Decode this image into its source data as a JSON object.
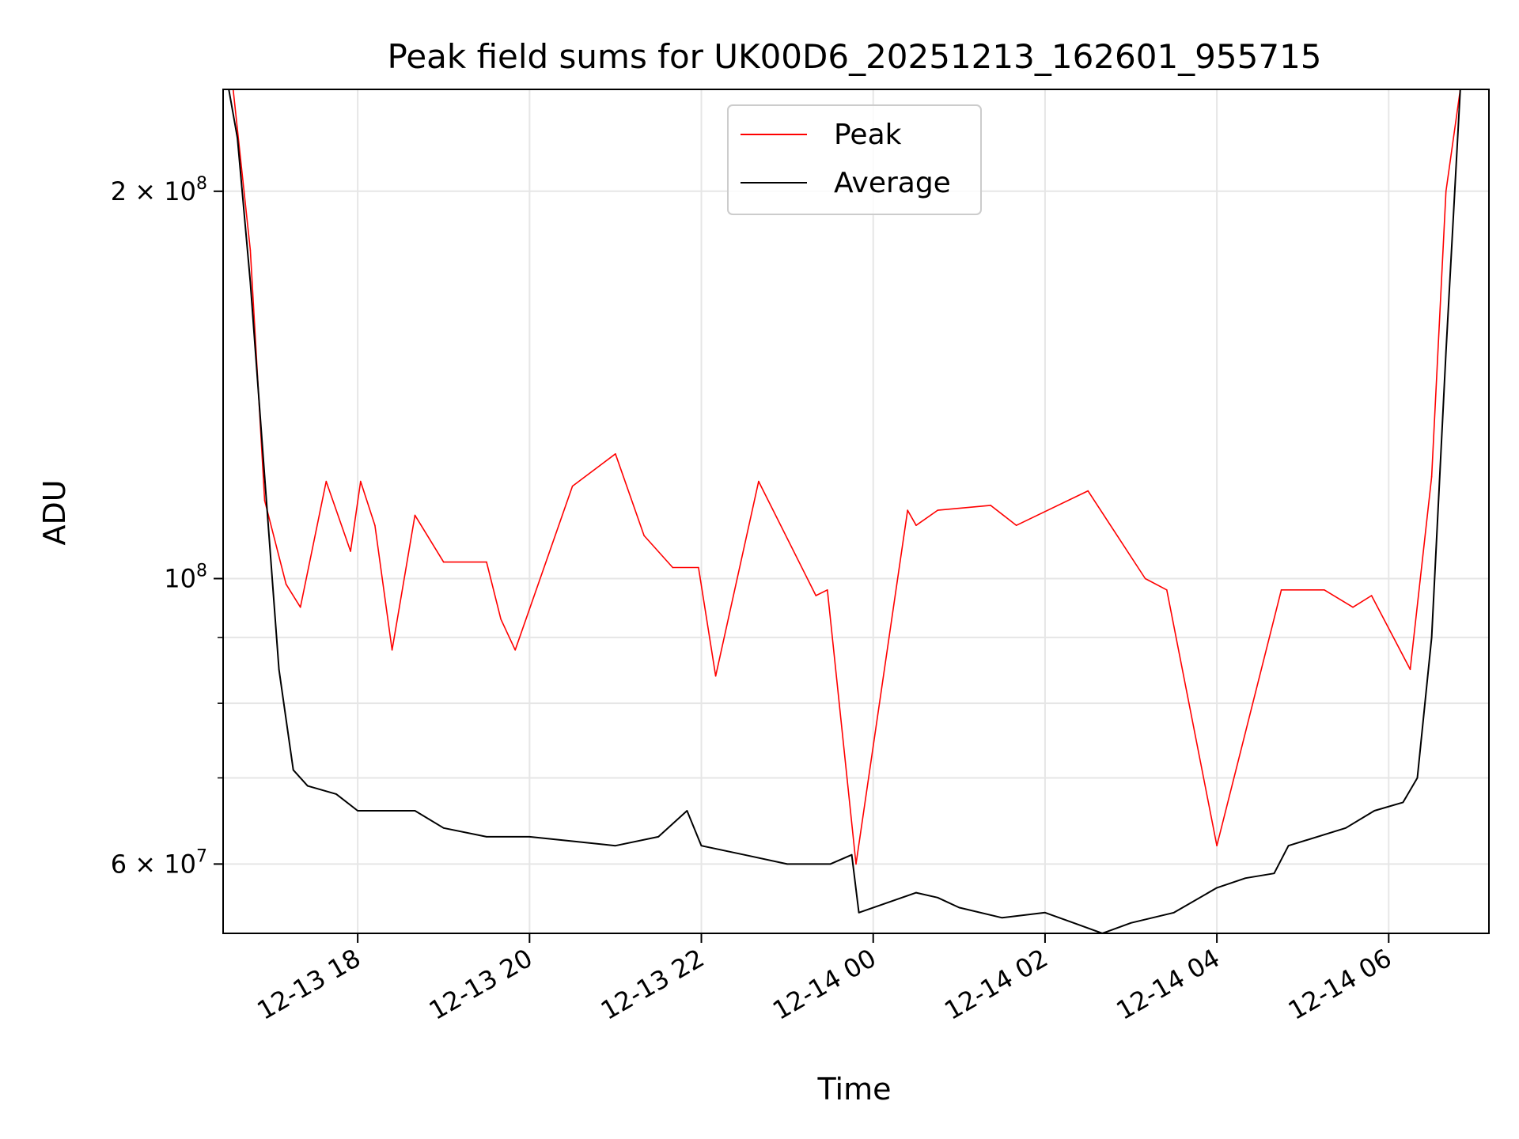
{
  "chart_data": {
    "type": "line",
    "title": "Peak field sums for UK00D6_20251213_162601_955715",
    "xlabel": "Time",
    "ylabel": "ADU",
    "yscale": "log",
    "xlim": [
      "2025-12-13 16:26",
      "2025-12-14 07:10"
    ],
    "ylim": [
      53000000,
      240000000
    ],
    "grid": true,
    "legend_position": "top-center",
    "x_ticks": [
      "12-13 18",
      "12-13 20",
      "12-13 22",
      "12-14 00",
      "12-14 02",
      "12-14 04",
      "12-14 06"
    ],
    "y_tick_labels": [
      {
        "value": 60000000,
        "label": "6 × 10^7",
        "mantissa": "6",
        "exponent": "7"
      },
      {
        "value": 100000000,
        "label": "10^8",
        "mantissa": "",
        "exponent": "8"
      },
      {
        "value": 200000000,
        "label": "2 × 10^8",
        "mantissa": "2",
        "exponent": "8"
      }
    ],
    "minor_y_ticks": [
      70000000,
      80000000,
      90000000
    ],
    "series": [
      {
        "name": "Peak",
        "color": "#ff0000",
        "x": [
          "2025-12-13 16:33",
          "2025-12-13 16:45",
          "2025-12-13 16:55",
          "2025-12-13 17:10",
          "2025-12-13 17:20",
          "2025-12-13 17:38",
          "2025-12-13 17:55",
          "2025-12-13 18:02",
          "2025-12-13 18:12",
          "2025-12-13 18:24",
          "2025-12-13 18:40",
          "2025-12-13 19:00",
          "2025-12-13 19:30",
          "2025-12-13 19:40",
          "2025-12-13 19:50",
          "2025-12-13 20:30",
          "2025-12-13 21:00",
          "2025-12-13 21:20",
          "2025-12-13 21:40",
          "2025-12-13 21:58",
          "2025-12-13 22:10",
          "2025-12-13 22:40",
          "2025-12-13 23:20",
          "2025-12-13 23:28",
          "2025-12-13 23:48",
          "2025-12-14 00:24",
          "2025-12-14 00:30",
          "2025-12-14 00:45",
          "2025-12-14 01:22",
          "2025-12-14 01:40",
          "2025-12-14 02:30",
          "2025-12-14 03:10",
          "2025-12-14 03:25",
          "2025-12-14 04:00",
          "2025-12-14 04:45",
          "2025-12-14 05:15",
          "2025-12-14 05:35",
          "2025-12-14 05:48",
          "2025-12-14 06:15",
          "2025-12-14 06:30",
          "2025-12-14 06:40",
          "2025-12-14 06:50"
        ],
        "values": [
          240000000,
          180000000,
          115000000,
          99000000,
          95000000,
          119000000,
          105000000,
          119000000,
          110000000,
          88000000,
          112000000,
          103000000,
          103000000,
          93000000,
          88000000,
          118000000,
          125000000,
          108000000,
          102000000,
          102000000,
          84000000,
          119000000,
          97000000,
          98000000,
          60000000,
          113000000,
          110000000,
          113000000,
          114000000,
          110000000,
          117000000,
          100000000,
          98000000,
          62000000,
          98000000,
          98000000,
          95000000,
          97000000,
          85000000,
          120000000,
          200000000,
          240000000
        ]
      },
      {
        "name": "Average",
        "color": "#000000",
        "x": [
          "2025-12-13 16:30",
          "2025-12-13 16:36",
          "2025-12-13 16:45",
          "2025-12-13 16:55",
          "2025-12-13 17:05",
          "2025-12-13 17:15",
          "2025-12-13 17:25",
          "2025-12-13 17:45",
          "2025-12-13 18:00",
          "2025-12-13 18:40",
          "2025-12-13 19:00",
          "2025-12-13 19:30",
          "2025-12-13 20:00",
          "2025-12-13 20:30",
          "2025-12-13 21:00",
          "2025-12-13 21:30",
          "2025-12-13 21:50",
          "2025-12-13 22:00",
          "2025-12-13 22:30",
          "2025-12-13 23:00",
          "2025-12-13 23:30",
          "2025-12-13 23:45",
          "2025-12-13 23:50",
          "2025-12-14 00:30",
          "2025-12-14 00:45",
          "2025-12-14 01:00",
          "2025-12-14 01:30",
          "2025-12-14 02:00",
          "2025-12-14 02:20",
          "2025-12-14 02:40",
          "2025-12-14 03:00",
          "2025-12-14 03:30",
          "2025-12-14 04:00",
          "2025-12-14 04:20",
          "2025-12-14 04:40",
          "2025-12-14 04:50",
          "2025-12-14 05:30",
          "2025-12-14 05:50",
          "2025-12-14 06:10",
          "2025-12-14 06:20",
          "2025-12-14 06:30",
          "2025-12-14 06:40",
          "2025-12-14 06:50"
        ],
        "values": [
          240000000,
          220000000,
          170000000,
          120000000,
          85000000,
          71000000,
          69000000,
          68000000,
          66000000,
          66000000,
          64000000,
          63000000,
          63000000,
          62500000,
          62000000,
          63000000,
          66000000,
          62000000,
          61000000,
          60000000,
          60000000,
          61000000,
          55000000,
          57000000,
          56500000,
          55500000,
          54500000,
          55000000,
          54000000,
          53000000,
          54000000,
          55000000,
          57500000,
          58500000,
          59000000,
          62000000,
          64000000,
          66000000,
          67000000,
          70000000,
          90000000,
          150000000,
          240000000
        ]
      }
    ]
  }
}
